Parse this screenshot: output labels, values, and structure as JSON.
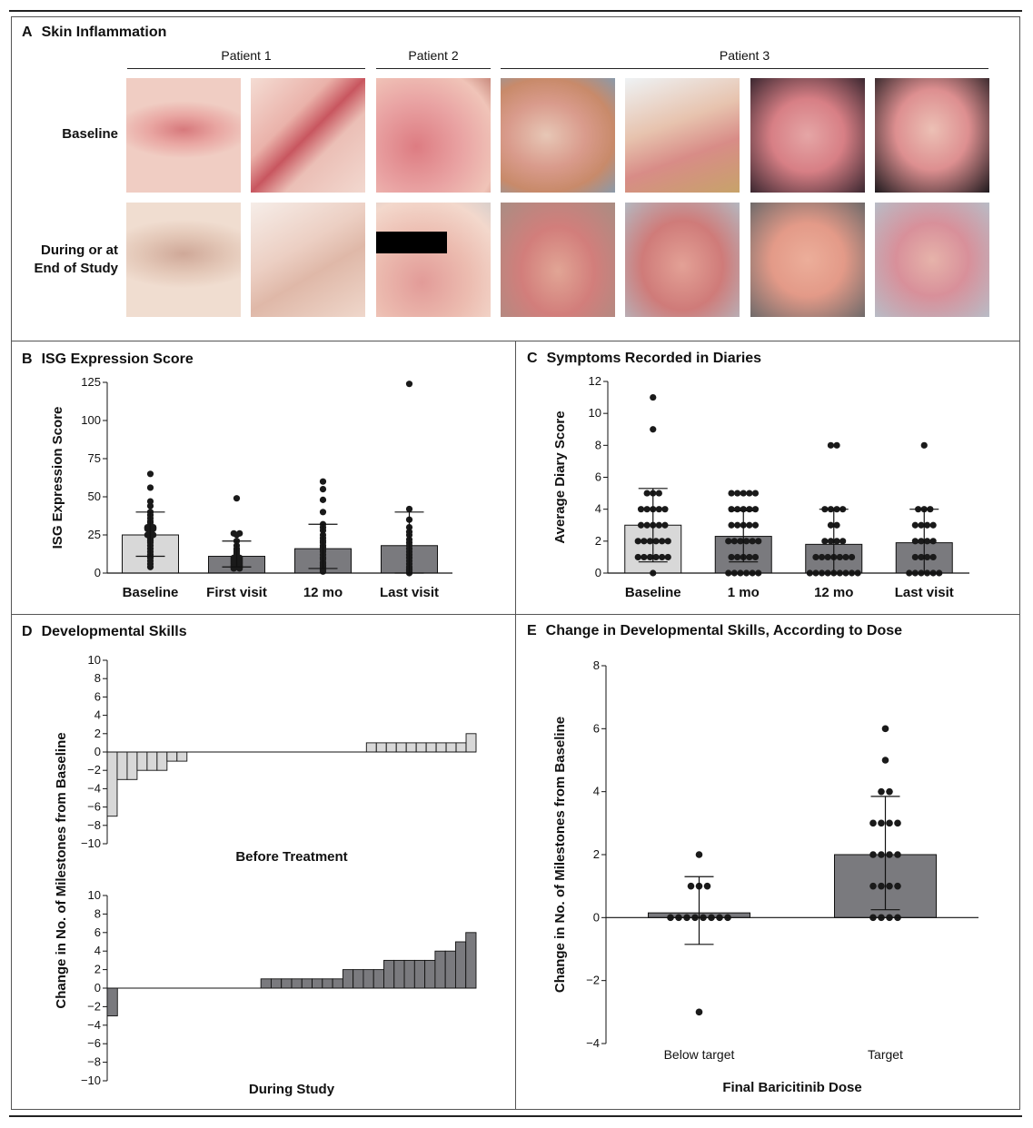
{
  "panelA": {
    "letter": "A",
    "title": "Skin Inflammation",
    "patients": [
      "Patient 1",
      "Patient 2",
      "Patient 3"
    ],
    "row_labels": {
      "baseline": "Baseline",
      "during": "During or at End of Study"
    }
  },
  "colors": {
    "light_bar": "#d8d8d8",
    "dark_bar": "#7a7a7e",
    "dot": "#1a1a1a",
    "skin": "#e8b9a9",
    "inflamed": "#d66a6e"
  },
  "chart_data": [
    {
      "id": "B",
      "letter": "B",
      "type": "bar",
      "title": "ISG Expression Score",
      "ylabel": "ISG Expression Score",
      "xlabel": "",
      "categories": [
        "Baseline",
        "First visit",
        "12 mo",
        "Last visit"
      ],
      "values": [
        25,
        11,
        16,
        18
      ],
      "error_low": [
        11,
        4,
        3,
        0
      ],
      "error_high": [
        40,
        21,
        32,
        40
      ],
      "ylim": [
        0,
        125
      ],
      "yticks": [
        0,
        25,
        50,
        75,
        100,
        125
      ],
      "points": [
        [
          65,
          56,
          47,
          44,
          40,
          38,
          36,
          34,
          33,
          31,
          30,
          30,
          29,
          29,
          28,
          27,
          26,
          25,
          25,
          24,
          23,
          22,
          21,
          20,
          18,
          16,
          14,
          12,
          10,
          8,
          6,
          4
        ],
        [
          49,
          26,
          26,
          25,
          21,
          18,
          16,
          15,
          14,
          13,
          12,
          11,
          10,
          10,
          9,
          9,
          8,
          8,
          7,
          7,
          6,
          6,
          5,
          5,
          4,
          4,
          3,
          3
        ],
        [
          60,
          55,
          48,
          40,
          32,
          30,
          28,
          25,
          23,
          21,
          20,
          18,
          17,
          16,
          15,
          14,
          12,
          10,
          9,
          7,
          6,
          5,
          4,
          3,
          2,
          1
        ],
        [
          124,
          42,
          35,
          30,
          27,
          25,
          22,
          20,
          18,
          16,
          14,
          12,
          10,
          8,
          6,
          4,
          3,
          2,
          1,
          0
        ]
      ],
      "bar_colors": [
        "#d8d8d8",
        "#7a7a7e",
        "#7a7a7e",
        "#7a7a7e"
      ]
    },
    {
      "id": "C",
      "letter": "C",
      "type": "bar",
      "title": "Symptoms Recorded in Diaries",
      "ylabel": "Average Diary Score",
      "xlabel": "",
      "categories": [
        "Baseline",
        "1 mo",
        "12 mo",
        "Last visit"
      ],
      "values": [
        3,
        2.3,
        1.8,
        1.9
      ],
      "error_low": [
        0.7,
        0.7,
        0,
        0
      ],
      "error_high": [
        5.3,
        3.9,
        4,
        4
      ],
      "ylim": [
        0,
        12
      ],
      "yticks": [
        0,
        2,
        4,
        6,
        8,
        10,
        12
      ],
      "points": [
        [
          11,
          9,
          5,
          5,
          5,
          4,
          4,
          4,
          4,
          4,
          3,
          3,
          3,
          3,
          3,
          2,
          2,
          2,
          2,
          2,
          2,
          1,
          1,
          1,
          1,
          1,
          1,
          0
        ],
        [
          5,
          5,
          5,
          5,
          5,
          4,
          4,
          4,
          4,
          4,
          3,
          3,
          3,
          3,
          3,
          2,
          2,
          2,
          2,
          2,
          2,
          1,
          1,
          1,
          1,
          1,
          0,
          0,
          0,
          0,
          0,
          0
        ],
        [
          8,
          8,
          4,
          4,
          4,
          4,
          3,
          3,
          2,
          2,
          2,
          2,
          1,
          1,
          1,
          1,
          1,
          1,
          1,
          0,
          0,
          0,
          0,
          0,
          0,
          0,
          0,
          0
        ],
        [
          8,
          4,
          4,
          4,
          3,
          3,
          3,
          3,
          2,
          2,
          2,
          2,
          1,
          1,
          1,
          1,
          0,
          0,
          0,
          0,
          0,
          0
        ]
      ],
      "bar_colors": [
        "#d8d8d8",
        "#7a7a7e",
        "#7a7a7e",
        "#7a7a7e"
      ]
    },
    {
      "id": "D",
      "letter": "D",
      "type": "bar",
      "title": "Developmental Skills",
      "ylabel": "Change in No. of Milestones from Baseline",
      "ylim": [
        -10,
        10
      ],
      "yticks": [
        -10,
        -8,
        -6,
        -4,
        -2,
        0,
        2,
        4,
        6,
        8,
        10
      ],
      "subplots": [
        {
          "label": "Before Treatment",
          "color": "#d8d8d8",
          "values": [
            -7,
            -3,
            -3,
            -2,
            -2,
            -2,
            -1,
            -1,
            0,
            0,
            0,
            0,
            0,
            0,
            0,
            0,
            0,
            0,
            0,
            0,
            0,
            0,
            0,
            0,
            0,
            0,
            1,
            1,
            1,
            1,
            1,
            1,
            1,
            1,
            1,
            1,
            2
          ]
        },
        {
          "label": "During Study",
          "color": "#7a7a7e",
          "values": [
            -3,
            0,
            0,
            0,
            0,
            0,
            0,
            0,
            0,
            0,
            0,
            0,
            0,
            0,
            0,
            1,
            1,
            1,
            1,
            1,
            1,
            1,
            1,
            2,
            2,
            2,
            2,
            3,
            3,
            3,
            3,
            3,
            4,
            4,
            5,
            6
          ]
        }
      ]
    },
    {
      "id": "E",
      "letter": "E",
      "type": "bar",
      "title": "Change in Developmental Skills, According to Dose",
      "ylabel": "Change in No. of Milestones from Baseline",
      "xlabel": "Final Baricitinib Dose",
      "categories": [
        "Below target",
        "Target"
      ],
      "values": [
        0.15,
        2
      ],
      "error_low": [
        -0.85,
        0.25
      ],
      "error_high": [
        1.3,
        3.85
      ],
      "ylim": [
        -4,
        8
      ],
      "yticks": [
        -4,
        -2,
        0,
        2,
        4,
        6,
        8
      ],
      "points": [
        [
          2,
          1,
          1,
          1,
          0,
          0,
          0,
          0,
          0,
          0,
          0,
          0,
          -3
        ],
        [
          6,
          5,
          4,
          4,
          3,
          3,
          3,
          3,
          2,
          2,
          2,
          2,
          1,
          1,
          1,
          1,
          0,
          0,
          0,
          0
        ]
      ],
      "bar_colors": [
        "#7a7a7e",
        "#7a7a7e"
      ]
    }
  ]
}
